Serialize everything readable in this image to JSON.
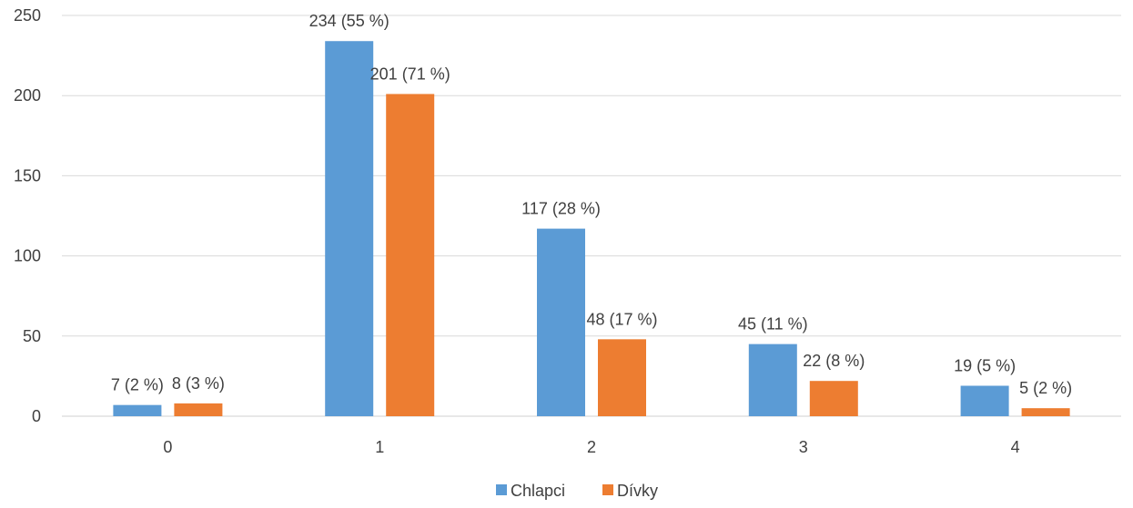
{
  "chart_data": {
    "type": "bar",
    "categories": [
      "0",
      "1",
      "2",
      "3",
      "4"
    ],
    "series": [
      {
        "name": "Chlapci",
        "color": "#5b9bd5",
        "values": [
          7,
          234,
          117,
          45,
          19
        ],
        "labels": [
          "7 (2 %)",
          "234 (55 %)",
          "117 (28 %)",
          "45 (11 %)",
          "19 (5 %)"
        ]
      },
      {
        "name": "Dívky",
        "color": "#ed7d31",
        "values": [
          8,
          201,
          48,
          22,
          5
        ],
        "labels": [
          "8 (3 %)",
          "201 (71 %)",
          "48 (17 %)",
          "22 (8 %)",
          "5 (2 %)"
        ]
      }
    ],
    "title": "",
    "xlabel": "",
    "ylabel": "",
    "ylim": [
      0,
      250
    ],
    "yticks": [
      0,
      50,
      100,
      150,
      200,
      250
    ],
    "grid": true,
    "legend_position": "bottom"
  }
}
